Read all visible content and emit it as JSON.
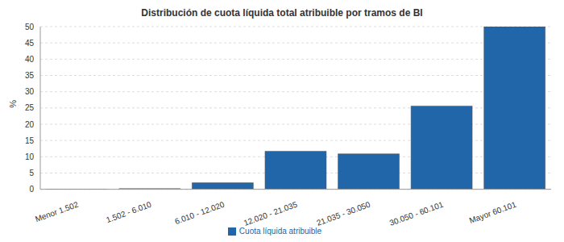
{
  "chart_data": {
    "type": "bar",
    "title": "Distribución de cuota líquida total atribuible por tramos de BI",
    "y_label": "%",
    "categories": [
      "Menor 1.502",
      "1.502 - 6.010",
      "6.010 - 12.020",
      "12.020 - 21.035",
      "21.035 - 30.050",
      "30.050 - 60.101",
      "Mayor 60.101"
    ],
    "series": [
      {
        "name": "Cuota líquida atribuible",
        "color": "#2166a8",
        "values": [
          0.05,
          0.2,
          2.0,
          11.7,
          10.9,
          25.6,
          50.0
        ]
      }
    ],
    "ylim": [
      0,
      50
    ],
    "yticks": [
      0,
      5,
      10,
      15,
      20,
      25,
      30,
      35,
      40,
      45,
      50
    ],
    "grid": true,
    "legend": "bottom"
  }
}
